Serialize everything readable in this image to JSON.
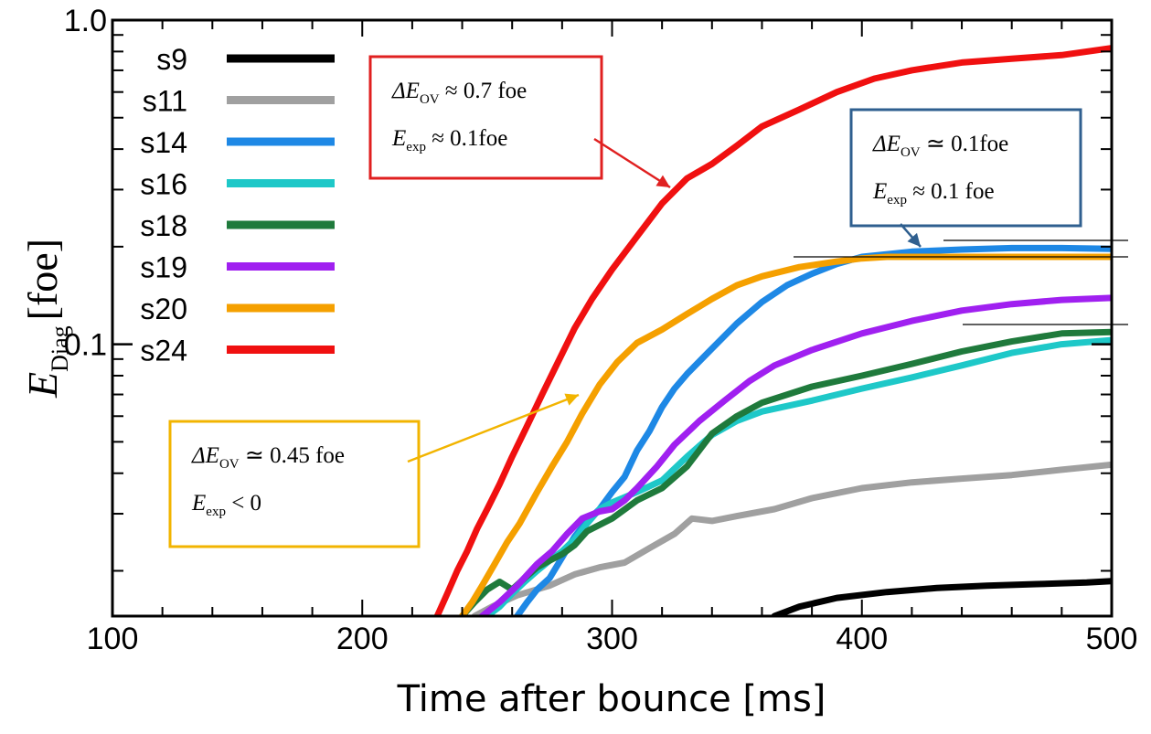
{
  "chart_data": {
    "type": "line",
    "xlabel": "Time after bounce [ms]",
    "ylabel": {
      "main": "E",
      "sub": "Diag",
      "unit": "[foe]"
    },
    "xlim": [
      100,
      500
    ],
    "ylim": [
      0.0145,
      1.0
    ],
    "yscale": "log",
    "x_ticks": [
      100,
      200,
      300,
      400,
      500
    ],
    "y_tick_labels": [
      {
        "value": 1.0,
        "label": "1.0"
      },
      {
        "value": 0.1,
        "label": "0.1"
      }
    ],
    "legend_position": "top-left",
    "series": [
      {
        "name": "s9",
        "color": "#000000",
        "x": [
          365,
          375,
          390,
          410,
          430,
          450,
          470,
          490,
          500
        ],
        "y": [
          0.0145,
          0.0155,
          0.0165,
          0.0172,
          0.0177,
          0.018,
          0.0182,
          0.0184,
          0.0186
        ]
      },
      {
        "name": "s11",
        "color": "#a0a0a0",
        "x": [
          245,
          252,
          262,
          275,
          285,
          295,
          305,
          315,
          325,
          332,
          340,
          350,
          365,
          380,
          400,
          420,
          440,
          460,
          480,
          500
        ],
        "y": [
          0.0145,
          0.0155,
          0.0168,
          0.018,
          0.0195,
          0.0205,
          0.0212,
          0.0235,
          0.026,
          0.029,
          0.0285,
          0.0295,
          0.031,
          0.0335,
          0.036,
          0.0375,
          0.0385,
          0.0395,
          0.041,
          0.0425
        ]
      },
      {
        "name": "s14",
        "color": "#1e88e5",
        "x": [
          262,
          266,
          270,
          275,
          280,
          285,
          290,
          295,
          300,
          305,
          310,
          315,
          320,
          325,
          330,
          340,
          350,
          360,
          370,
          380,
          390,
          400,
          420,
          440,
          460,
          480,
          500
        ],
        "y": [
          0.0145,
          0.016,
          0.0175,
          0.019,
          0.022,
          0.0255,
          0.0285,
          0.031,
          0.035,
          0.039,
          0.047,
          0.054,
          0.064,
          0.073,
          0.081,
          0.097,
          0.116,
          0.135,
          0.152,
          0.165,
          0.177,
          0.186,
          0.193,
          0.196,
          0.198,
          0.198,
          0.197
        ]
      },
      {
        "name": "s16",
        "color": "#1ec8c8",
        "x": [
          250,
          255,
          260,
          265,
          270,
          275,
          280,
          285,
          290,
          295,
          300,
          310,
          320,
          330,
          340,
          350,
          360,
          380,
          400,
          420,
          440,
          460,
          480,
          500
        ],
        "y": [
          0.0145,
          0.0155,
          0.017,
          0.0185,
          0.02,
          0.0215,
          0.023,
          0.025,
          0.028,
          0.031,
          0.0325,
          0.035,
          0.038,
          0.045,
          0.0525,
          0.058,
          0.062,
          0.067,
          0.073,
          0.079,
          0.086,
          0.094,
          0.1,
          0.103
        ]
      },
      {
        "name": "s18",
        "color": "#1f7a3c",
        "x": [
          240,
          245,
          250,
          255,
          260,
          265,
          270,
          275,
          280,
          285,
          290,
          300,
          310,
          320,
          330,
          340,
          350,
          360,
          380,
          400,
          420,
          440,
          460,
          480,
          500
        ],
        "y": [
          0.0145,
          0.016,
          0.0175,
          0.0185,
          0.0175,
          0.019,
          0.0205,
          0.0215,
          0.0225,
          0.024,
          0.0265,
          0.029,
          0.033,
          0.036,
          0.042,
          0.053,
          0.06,
          0.066,
          0.074,
          0.08,
          0.087,
          0.095,
          0.102,
          0.108,
          0.109
        ]
      },
      {
        "name": "s19",
        "color": "#a020f0",
        "x": [
          248,
          255,
          262,
          270,
          276,
          282,
          288,
          295,
          300,
          305,
          310,
          318,
          325,
          335,
          345,
          355,
          365,
          380,
          400,
          420,
          440,
          460,
          480,
          500
        ],
        "y": [
          0.0145,
          0.016,
          0.018,
          0.021,
          0.023,
          0.026,
          0.029,
          0.0305,
          0.031,
          0.033,
          0.036,
          0.042,
          0.049,
          0.058,
          0.067,
          0.077,
          0.086,
          0.096,
          0.108,
          0.118,
          0.127,
          0.133,
          0.137,
          0.139
        ]
      },
      {
        "name": "s20",
        "color": "#f5a000",
        "x": [
          240,
          244,
          248,
          253,
          258,
          263,
          270,
          276,
          282,
          288,
          295,
          302,
          310,
          320,
          330,
          340,
          350,
          360,
          375,
          390,
          400,
          410,
          420,
          440,
          460,
          480,
          500
        ],
        "y": [
          0.0145,
          0.016,
          0.018,
          0.021,
          0.0245,
          0.028,
          0.035,
          0.042,
          0.05,
          0.061,
          0.075,
          0.088,
          0.101,
          0.111,
          0.124,
          0.138,
          0.152,
          0.162,
          0.173,
          0.18,
          0.184,
          0.186,
          0.186,
          0.186,
          0.186,
          0.186,
          0.186
        ]
      },
      {
        "name": "s24",
        "color": "#f01010",
        "x": [
          230,
          234,
          238,
          242,
          246,
          250,
          255,
          260,
          266,
          272,
          278,
          285,
          292,
          300,
          310,
          320,
          330,
          340,
          350,
          360,
          375,
          390,
          405,
          420,
          440,
          460,
          480,
          500
        ],
        "y": [
          0.0145,
          0.017,
          0.02,
          0.023,
          0.027,
          0.031,
          0.037,
          0.045,
          0.056,
          0.07,
          0.087,
          0.112,
          0.138,
          0.17,
          0.215,
          0.272,
          0.325,
          0.36,
          0.41,
          0.47,
          0.53,
          0.6,
          0.66,
          0.7,
          0.74,
          0.76,
          0.78,
          0.82
        ]
      }
    ],
    "annotations": [
      {
        "id": "red",
        "color": "#e02020",
        "lines": [
          {
            "prefix": "ΔE",
            "sub": "OV",
            "rest": " ≈ 0.7 foe"
          },
          {
            "prefix": "E",
            "sub": "exp",
            "rest": " ≈ 0.1foe"
          }
        ]
      },
      {
        "id": "blue",
        "color": "#2f5f8f",
        "lines": [
          {
            "prefix": "ΔE",
            "sub": "OV",
            "rest": " ≃ 0.1foe"
          },
          {
            "prefix": "E",
            "sub": "exp",
            "rest": " ≈ 0.1 foe"
          }
        ]
      },
      {
        "id": "yellow",
        "color": "#f2b400",
        "lines": [
          {
            "prefix": "ΔE",
            "sub": "OV",
            "rest": " ≃ 0.45 foe"
          },
          {
            "prefix": "E",
            "sub": "exp",
            "rest": " < 0"
          }
        ]
      }
    ]
  }
}
